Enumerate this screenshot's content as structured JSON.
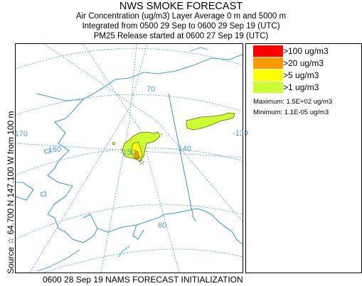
{
  "header": {
    "title": "NWS SMOKE FORECAST",
    "line1": "Air Concentration (ug/m3) Layer Average    0 m and  5000 m",
    "line2": "Integrated from 0500 29 Sep to 0600 29 Sep 19 (UTC)",
    "line3": "PM25 Release started at 0600 27 Sep 19 (UTC)"
  },
  "side_label": "Source ☆ 64.700 N 147.100 W     from    100 m",
  "footer": "0600 28 Sep 19 NAMS FORECAST INITIALIZATION",
  "legend": {
    "items": [
      {
        "label": ">100 ug/m3",
        "color": "#ff0000"
      },
      {
        "label": ">20 ug/m3",
        "color": "#ff9900"
      },
      {
        "label": ">5 ug/m3",
        "color": "#ffff00"
      },
      {
        "label": ">1 ug/m3",
        "color": "#ccff33"
      }
    ],
    "maximum": "Maximum: 1.5E+02 ug/m3",
    "minimum": "Minimum: 1.1E-05 ug/m3"
  },
  "map": {
    "grid_labels": [
      "-170",
      "-160",
      "-150",
      "-140",
      "-130",
      "70",
      "60"
    ],
    "colors": {
      "grid": "#4a9fd0",
      "coast": "#3aa0d8",
      "border": "#3a8fd0",
      "smoke_low": "#ccff33",
      "smoke_mid": "#ffff00",
      "smoke_high": "#ff9900",
      "smoke_outline": "#5a6b00"
    }
  }
}
